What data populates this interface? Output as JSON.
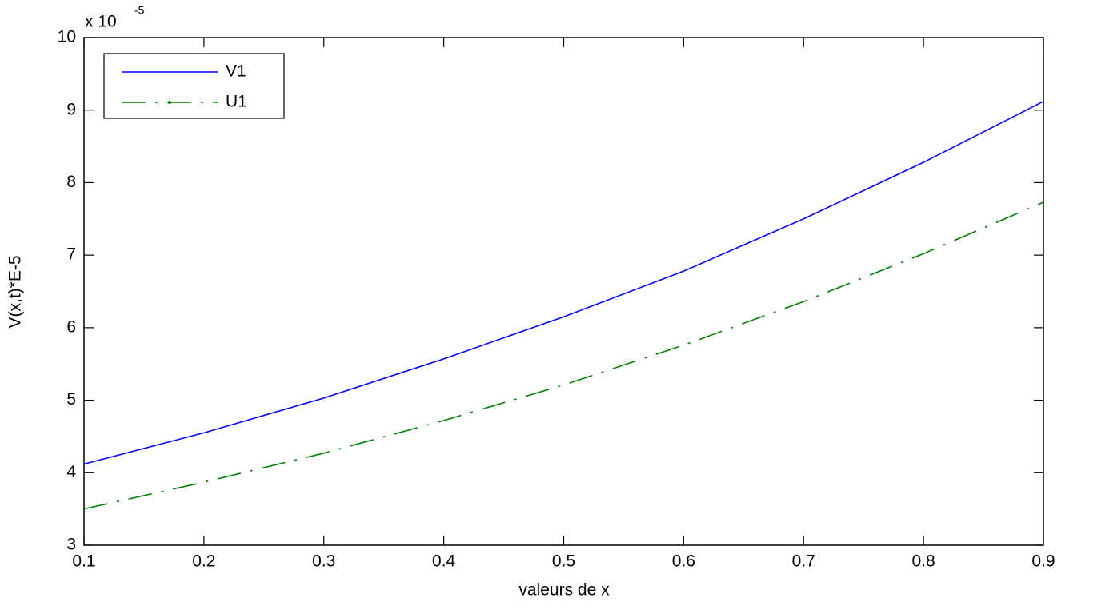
{
  "chart_data": {
    "type": "line",
    "x": [
      0.1,
      0.2,
      0.3,
      0.4,
      0.5,
      0.6,
      0.7,
      0.8,
      0.9
    ],
    "series": [
      {
        "name": "V1",
        "color": "#0000ff",
        "linestyle": "solid",
        "values": [
          4.12,
          4.55,
          5.03,
          5.57,
          6.15,
          6.78,
          7.5,
          8.28,
          9.12
        ]
      },
      {
        "name": "U1",
        "color": "#007f00",
        "linestyle": "dashdot",
        "values": [
          3.5,
          3.87,
          4.27,
          4.72,
          5.21,
          5.76,
          6.36,
          7.02,
          7.73
        ]
      }
    ],
    "xlabel": "valeurs de x",
    "ylabel": "V(x,t)*E-5",
    "y_scale_label": "x 10",
    "y_scale_exponent": "-5",
    "xlim": [
      0.1,
      0.9
    ],
    "xticks": [
      0.1,
      0.2,
      0.3,
      0.4,
      0.5,
      0.6,
      0.7,
      0.8,
      0.9
    ],
    "ylim": [
      3,
      10
    ],
    "yticks": [
      3,
      4,
      5,
      6,
      7,
      8,
      9,
      10
    ],
    "grid": false,
    "legend": "upper left"
  }
}
